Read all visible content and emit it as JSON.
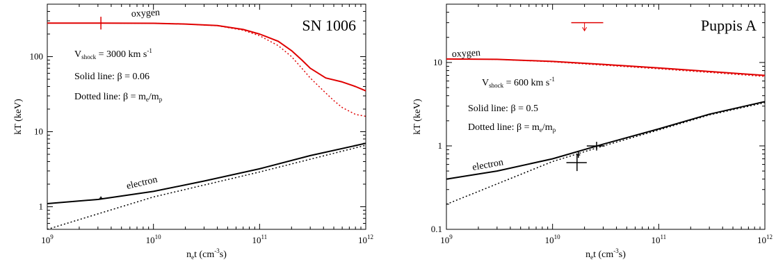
{
  "chart_data": [
    {
      "type": "line",
      "title": "SN 1006",
      "xlabel": {
        "base": "n",
        "sub": "e",
        "rest": "t (cm",
        "sup": "-3",
        "end": "s)"
      },
      "ylabel": "kT (keV)",
      "x_scale": "log",
      "y_scale": "log",
      "xlim": [
        1000000000.0,
        1000000000000.0
      ],
      "ylim": [
        0.5,
        500
      ],
      "x_ticks": [
        {
          "value": 1000000000.0,
          "base": "10",
          "exp": "9"
        },
        {
          "value": 10000000000.0,
          "base": "10",
          "exp": "10"
        },
        {
          "value": 100000000000.0,
          "base": "10",
          "exp": "11"
        },
        {
          "value": 1000000000000.0,
          "base": "10",
          "exp": "12"
        }
      ],
      "y_ticks": [
        {
          "value": 1,
          "label": "1"
        },
        {
          "value": 10,
          "label": "10"
        },
        {
          "value": 100,
          "label": "100"
        }
      ],
      "annotations": {
        "vshock": {
          "v": "V",
          "sub": "shock",
          "rest": " = 3000 km s",
          "sup": "-1"
        },
        "solid": "Solid line: β = 0.06",
        "dotted_base": "Dotted line: β = m",
        "dotted_sub1": "e",
        "dotted_mid": "/m",
        "dotted_sub2": "p"
      },
      "series": [
        {
          "name": "oxygen",
          "color": "#e00000",
          "style": "solid",
          "x": [
            1000000000.0,
            3000000000.0,
            10000000000.0,
            20000000000.0,
            40000000000.0,
            70000000000.0,
            100000000000.0,
            150000000000.0,
            200000000000.0,
            250000000000.0,
            300000000000.0,
            420000000000.0,
            600000000000.0,
            800000000000.0,
            1000000000000.0
          ],
          "y": [
            280,
            280,
            278,
            272,
            260,
            230,
            200,
            160,
            120,
            90,
            70,
            52,
            46,
            40,
            35
          ]
        },
        {
          "name": "",
          "color": "#e00000",
          "style": "dotted",
          "x": [
            1000000000.0,
            3000000000.0,
            10000000000.0,
            20000000000.0,
            40000000000.0,
            70000000000.0,
            100000000000.0,
            150000000000.0,
            200000000000.0,
            250000000000.0,
            300000000000.0,
            400000000000.0,
            500000000000.0,
            600000000000.0,
            800000000000.0,
            1000000000000.0
          ],
          "y": [
            280,
            280,
            278,
            272,
            258,
            225,
            190,
            140,
            100,
            70,
            52,
            35,
            26,
            21,
            17,
            16
          ]
        },
        {
          "name": "electron",
          "color": "#000000",
          "style": "solid",
          "x": [
            1000000000.0,
            3000000000.0,
            10000000000.0,
            30000000000.0,
            100000000000.0,
            300000000000.0,
            1000000000000.0
          ],
          "y": [
            1.1,
            1.25,
            1.6,
            2.2,
            3.2,
            4.8,
            7.0
          ]
        },
        {
          "name": "",
          "color": "#000000",
          "style": "dotted",
          "x": [
            1000000000.0,
            10000000000.0,
            100000000000.0,
            1000000000000.0
          ],
          "y": [
            0.5,
            1.35,
            2.9,
            6.6
          ]
        }
      ],
      "data_points": [
        {
          "series": "oxygen",
          "x": 3200000000.0,
          "y": 280,
          "xerr_frac": 0.0,
          "yerr_lo": 230,
          "yerr_hi": 340
        },
        {
          "series": "electron",
          "x": 3200000000.0,
          "y": 1.3,
          "xerr_frac": 0.0,
          "yerr_lo": 1.25,
          "yerr_hi": 1.37
        }
      ],
      "upper_limits": []
    },
    {
      "type": "line",
      "title": "Puppis A",
      "xlabel": {
        "base": "n",
        "sub": "e",
        "rest": "t (cm",
        "sup": "-3",
        "end": "s)"
      },
      "ylabel": "kT (keV)",
      "x_scale": "log",
      "y_scale": "log",
      "xlim": [
        1000000000.0,
        1000000000000.0
      ],
      "ylim": [
        0.1,
        50
      ],
      "x_ticks": [
        {
          "value": 1000000000.0,
          "base": "10",
          "exp": "9"
        },
        {
          "value": 10000000000.0,
          "base": "10",
          "exp": "10"
        },
        {
          "value": 100000000000.0,
          "base": "10",
          "exp": "11"
        },
        {
          "value": 1000000000000.0,
          "base": "10",
          "exp": "12"
        }
      ],
      "y_ticks": [
        {
          "value": 0.1,
          "label": "0.1"
        },
        {
          "value": 1,
          "label": "1"
        },
        {
          "value": 10,
          "label": "10"
        }
      ],
      "annotations": {
        "vshock": {
          "v": "V",
          "sub": "shock",
          "rest": " = 600 km s",
          "sup": "-1"
        },
        "solid": "Solid line: β = 0.5",
        "dotted_base": "Dotted line: β = m",
        "dotted_sub1": "e",
        "dotted_mid": "/m",
        "dotted_sub2": "p"
      },
      "series": [
        {
          "name": "oxygen",
          "color": "#e00000",
          "style": "solid",
          "x": [
            1000000000.0,
            3000000000.0,
            10000000000.0,
            30000000000.0,
            100000000000.0,
            300000000000.0,
            1000000000000.0
          ],
          "y": [
            11,
            10.9,
            10.3,
            9.5,
            8.6,
            7.8,
            7.0
          ]
        },
        {
          "name": "",
          "color": "#e00000",
          "style": "dotted",
          "x": [
            1000000000.0,
            3000000000.0,
            10000000000.0,
            30000000000.0,
            100000000000.0,
            300000000000.0,
            1000000000000.0
          ],
          "y": [
            11,
            10.9,
            10.2,
            9.3,
            8.4,
            7.6,
            6.8
          ]
        },
        {
          "name": "electron",
          "color": "#000000",
          "style": "solid",
          "x": [
            1000000000.0,
            3000000000.0,
            10000000000.0,
            30000000000.0,
            100000000000.0,
            300000000000.0,
            1000000000000.0
          ],
          "y": [
            0.4,
            0.5,
            0.7,
            1.05,
            1.6,
            2.4,
            3.4
          ]
        },
        {
          "name": "",
          "color": "#000000",
          "style": "dotted",
          "x": [
            1000000000.0,
            3000000000.0,
            10000000000.0,
            30000000000.0,
            100000000000.0,
            300000000000.0,
            1000000000000.0
          ],
          "y": [
            0.2,
            0.35,
            0.65,
            1.0,
            1.55,
            2.35,
            3.3
          ]
        }
      ],
      "data_points": [
        {
          "series": "electron",
          "x": 17000000000.0,
          "y": 0.63,
          "xerr_lo": 13500000000.0,
          "xerr_hi": 21000000000.0,
          "yerr_lo": 0.5,
          "yerr_hi": 0.8
        },
        {
          "series": "electron",
          "x": 17500000000.0,
          "y": 0.78,
          "xerr_lo": 17000000000.0,
          "xerr_hi": 18200000000.0,
          "yerr_lo": 0.72,
          "yerr_hi": 0.86
        },
        {
          "series": "electron",
          "x": 26000000000.0,
          "y": 1.0,
          "xerr_lo": 21000000000.0,
          "xerr_hi": 31000000000.0,
          "yerr_lo": 0.88,
          "yerr_hi": 1.12
        }
      ],
      "upper_limits": [
        {
          "series": "oxygen",
          "x": 20000000000.0,
          "y": 30,
          "x_lo": 15000000000.0,
          "x_hi": 30000000000.0,
          "arrow_to": 24
        }
      ]
    }
  ]
}
